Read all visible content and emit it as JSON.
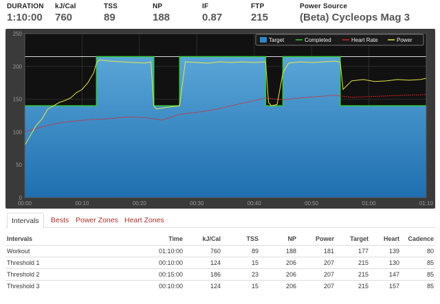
{
  "stats": [
    {
      "label": "DURATION",
      "value": "1:10:00"
    },
    {
      "label": "kJ/Cal",
      "value": "760"
    },
    {
      "label": "TSS",
      "value": "89"
    },
    {
      "label": "NP",
      "value": "188"
    },
    {
      "label": "IF",
      "value": "0.87"
    },
    {
      "label": "FTP",
      "value": "215"
    },
    {
      "label": "Power Source",
      "value": "(Beta) Cycleops Mag 3"
    }
  ],
  "chart_data": {
    "type": "area",
    "xlabel": "",
    "ylabel": "",
    "xlim": [
      0,
      70
    ],
    "ylim": [
      0,
      250
    ],
    "grid": true,
    "legend_position": "top-right",
    "x_ticks": [
      "00:00",
      "00:10",
      "00:20",
      "00:30",
      "00:40",
      "00:50",
      "01:00",
      "01:10"
    ],
    "y_ticks": [
      "0",
      "50",
      "100",
      "150",
      "200",
      "250"
    ],
    "colors": {
      "target": "#2f86c6",
      "completed": "#33cc33",
      "heart_rate": "#e02020",
      "power": "#e8e84a",
      "ftp_line": "#dddddd",
      "background": "#111111"
    },
    "ftp_reference": 215,
    "series": [
      {
        "name": "Target",
        "x": [
          0,
          12.5,
          12.5,
          22.5,
          22.5,
          27,
          27,
          42,
          42,
          45,
          45,
          55,
          55,
          70
        ],
        "values": [
          140,
          140,
          215,
          215,
          140,
          140,
          215,
          215,
          140,
          140,
          215,
          215,
          140,
          140
        ]
      },
      {
        "name": "Completed",
        "x": [
          0,
          12.5,
          12.5,
          22.5,
          22.5,
          27,
          27,
          42,
          42,
          45,
          45,
          55,
          55,
          70
        ],
        "values": [
          140,
          140,
          215,
          215,
          140,
          140,
          215,
          215,
          140,
          140,
          215,
          215,
          140,
          140
        ]
      },
      {
        "name": "Heart Rate",
        "x": [
          0,
          3,
          6,
          10,
          14,
          18,
          21,
          24,
          27,
          30,
          33,
          36,
          39,
          42,
          45,
          48,
          51,
          54,
          57,
          60,
          63,
          66,
          70
        ],
        "values": [
          100,
          108,
          114,
          118,
          120,
          123,
          122,
          118,
          127,
          130,
          134,
          140,
          146,
          152,
          149,
          152,
          154,
          156,
          153,
          154,
          155,
          156,
          157
        ]
      },
      {
        "name": "Power",
        "x": [
          0,
          1,
          2,
          3,
          4,
          5,
          6,
          7,
          8,
          9,
          10,
          11,
          12,
          12.5,
          13,
          15,
          17,
          19,
          21,
          22,
          22.5,
          23,
          25,
          27,
          28,
          30,
          32,
          34,
          36,
          38,
          40,
          42,
          42.5,
          43,
          44,
          45,
          46,
          48,
          50,
          52,
          54,
          55,
          55.5,
          57,
          59,
          61,
          63,
          65,
          67,
          69,
          70
        ],
        "values": [
          80,
          95,
          110,
          120,
          135,
          140,
          145,
          148,
          152,
          160,
          165,
          175,
          190,
          205,
          210,
          208,
          207,
          206,
          205,
          207,
          140,
          135,
          138,
          140,
          207,
          206,
          205,
          207,
          206,
          207,
          206,
          207,
          145,
          140,
          142,
          190,
          205,
          207,
          206,
          207,
          208,
          207,
          165,
          178,
          180,
          177,
          178,
          180,
          179,
          180,
          182
        ]
      }
    ]
  },
  "tabs": [
    {
      "label": "Intervals"
    },
    {
      "label": "Bests"
    },
    {
      "label": "Power Zones"
    },
    {
      "label": "Heart Zones"
    }
  ],
  "table": {
    "headers": [
      "Intervals",
      "Time",
      "kJ/Cal",
      "TSS",
      "NP",
      "Power",
      "Target",
      "Heart",
      "Cadence"
    ],
    "rows": [
      [
        "Workout",
        "01:10:00",
        "760",
        "89",
        "188",
        "181",
        "177",
        "139",
        "80"
      ],
      [
        "Threshold 1",
        "00:10:00",
        "124",
        "15",
        "206",
        "207",
        "215",
        "130",
        "85"
      ],
      [
        "Threshold 2",
        "00:15:00",
        "186",
        "23",
        "206",
        "207",
        "215",
        "147",
        "85"
      ],
      [
        "Threshold 3",
        "00:10:00",
        "124",
        "15",
        "206",
        "207",
        "215",
        "157",
        "85"
      ]
    ]
  }
}
